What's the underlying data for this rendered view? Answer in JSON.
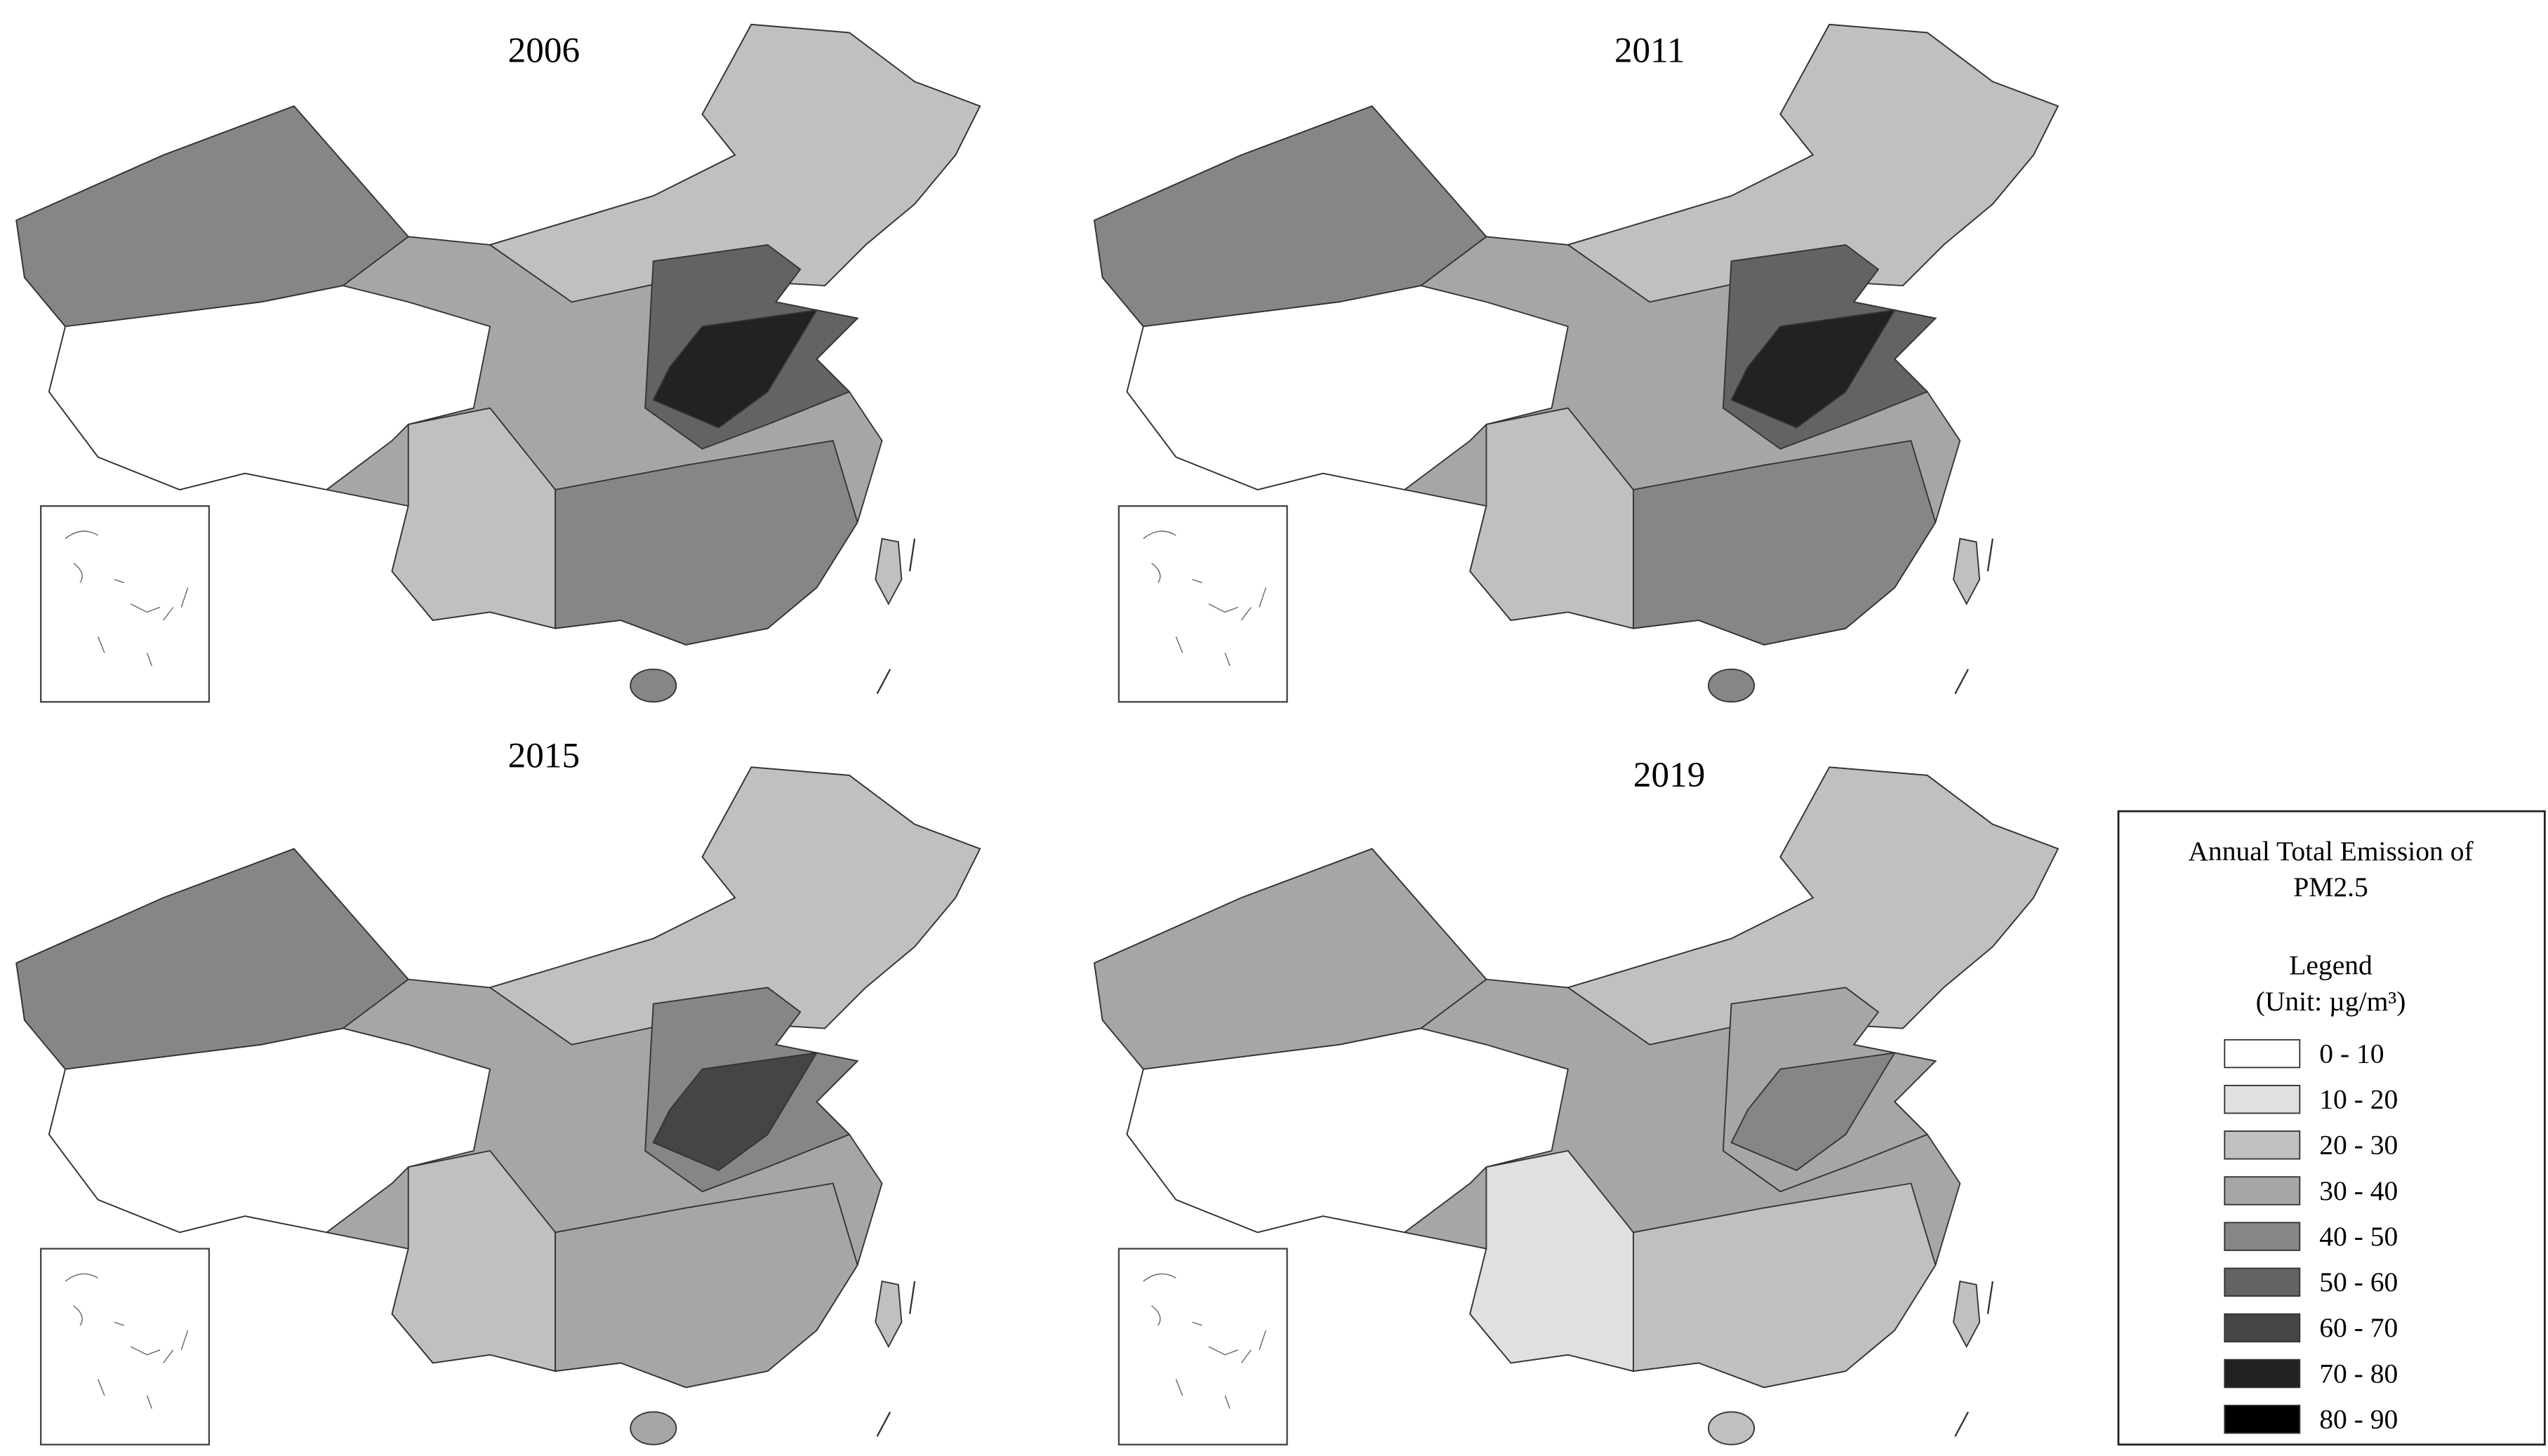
{
  "maps": [
    {
      "title": "2006"
    },
    {
      "title": "2011"
    },
    {
      "title": "2015"
    },
    {
      "title": "2019"
    }
  ],
  "legend": {
    "title": [
      "Annual Total Emission of",
      "PM2.5"
    ],
    "heading": "Legend",
    "unit": "(Unit: µg/m³)",
    "items": [
      {
        "label": "0 - 10",
        "color": "#ffffff"
      },
      {
        "label": "10 - 20",
        "color": "#e0e0e0"
      },
      {
        "label": "20 - 30",
        "color": "#c0c0c0"
      },
      {
        "label": "30 - 40",
        "color": "#a6a6a6"
      },
      {
        "label": "40 - 50",
        "color": "#868686"
      },
      {
        "label": "50 - 60",
        "color": "#636363"
      },
      {
        "label": "60 - 70",
        "color": "#454545"
      },
      {
        "label": "70 - 80",
        "color": "#222222"
      },
      {
        "label": "80 - 90",
        "color": "#000000"
      }
    ]
  }
}
